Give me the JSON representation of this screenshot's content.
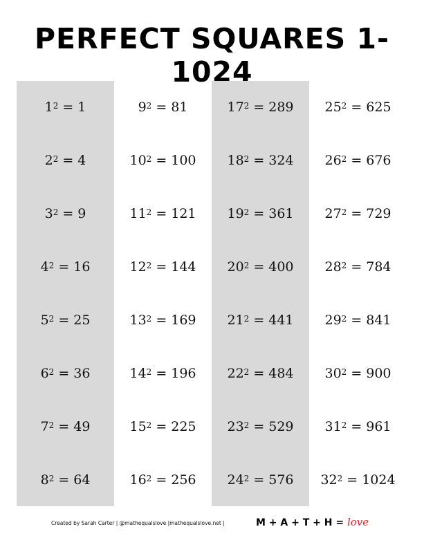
{
  "title": "PERFECT SQUARES 1-1024",
  "columns": [
    {
      "shaded": true,
      "items": [
        {
          "base": "1",
          "exp": "2",
          "result": "1"
        },
        {
          "base": "2",
          "exp": "2",
          "result": "4"
        },
        {
          "base": "3",
          "exp": "2",
          "result": "9"
        },
        {
          "base": "4",
          "exp": "2",
          "result": "16"
        },
        {
          "base": "5",
          "exp": "2",
          "result": "25"
        },
        {
          "base": "6",
          "exp": "2",
          "result": "36"
        },
        {
          "base": "7",
          "exp": "2",
          "result": "49"
        },
        {
          "base": "8",
          "exp": "2",
          "result": "64"
        }
      ]
    },
    {
      "shaded": false,
      "items": [
        {
          "base": "9",
          "exp": "2",
          "result": "81"
        },
        {
          "base": "10",
          "exp": "2",
          "result": "100"
        },
        {
          "base": "11",
          "exp": "2",
          "result": "121"
        },
        {
          "base": "12",
          "exp": "2",
          "result": "144"
        },
        {
          "base": "13",
          "exp": "2",
          "result": "169"
        },
        {
          "base": "14",
          "exp": "2",
          "result": "196"
        },
        {
          "base": "15",
          "exp": "2",
          "result": "225"
        },
        {
          "base": "16",
          "exp": "2",
          "result": "256"
        }
      ]
    },
    {
      "shaded": true,
      "items": [
        {
          "base": "17",
          "exp": "2",
          "result": "289"
        },
        {
          "base": "18",
          "exp": "2",
          "result": "324"
        },
        {
          "base": "19",
          "exp": "2",
          "result": "361"
        },
        {
          "base": "20",
          "exp": "2",
          "result": "400"
        },
        {
          "base": "21",
          "exp": "2",
          "result": "441"
        },
        {
          "base": "22",
          "exp": "2",
          "result": "484"
        },
        {
          "base": "23",
          "exp": "2",
          "result": "529"
        },
        {
          "base": "24",
          "exp": "2",
          "result": "576"
        }
      ]
    },
    {
      "shaded": false,
      "items": [
        {
          "base": "25",
          "exp": "2",
          "result": "625"
        },
        {
          "base": "26",
          "exp": "2",
          "result": "676"
        },
        {
          "base": "27",
          "exp": "2",
          "result": "729"
        },
        {
          "base": "28",
          "exp": "2",
          "result": "784"
        },
        {
          "base": "29",
          "exp": "2",
          "result": "841"
        },
        {
          "base": "30",
          "exp": "2",
          "result": "900"
        },
        {
          "base": "31",
          "exp": "2",
          "result": "961"
        },
        {
          "base": "32",
          "exp": "2",
          "result": "1024"
        }
      ]
    }
  ],
  "equals_sign": "=",
  "footer": {
    "credit": "Created by Sarah Carter | @mathequalslove |mathequalslove.net |",
    "logo_text": "M + A + T + H = ",
    "logo_love": "love"
  },
  "colors": {
    "shade": "#d9d9d9",
    "love": "#d9252b"
  }
}
